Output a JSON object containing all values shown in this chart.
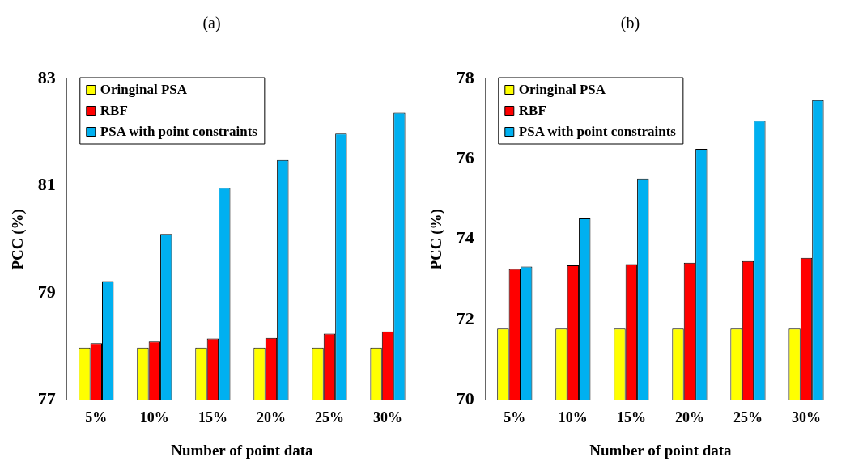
{
  "chart_data": [
    {
      "type": "bar",
      "title": "(a)",
      "xlabel": "Number of point data",
      "ylabel": "PCC (%)",
      "categories": [
        "5%",
        "10%",
        "15%",
        "20%",
        "25%",
        "30%"
      ],
      "series": [
        {
          "name": "Oringinal PSA",
          "color": "#ffff00",
          "values": [
            77.98,
            77.98,
            77.98,
            77.98,
            77.98,
            77.98
          ]
        },
        {
          "name": "RBF",
          "color": "#ff0000",
          "values": [
            78.06,
            78.09,
            78.15,
            78.16,
            78.24,
            78.28
          ]
        },
        {
          "name": "PSA with point constraints",
          "color": "#00b0f0",
          "values": [
            79.22,
            80.1,
            80.96,
            81.48,
            81.97,
            82.36
          ]
        }
      ],
      "ylim": [
        77,
        83
      ],
      "yticks": [
        77,
        79,
        81,
        83
      ],
      "legend": "top left",
      "grid": false
    },
    {
      "type": "bar",
      "title": "(b)",
      "xlabel": "Number of point data",
      "ylabel": "PCC (%)",
      "categories": [
        "5%",
        "10%",
        "15%",
        "20%",
        "25%",
        "30%"
      ],
      "series": [
        {
          "name": "Oringinal PSA",
          "color": "#ffff00",
          "values": [
            71.78,
            71.78,
            71.78,
            71.78,
            71.78,
            71.78
          ]
        },
        {
          "name": "RBF",
          "color": "#ff0000",
          "values": [
            73.26,
            73.35,
            73.38,
            73.42,
            73.46,
            73.54
          ]
        },
        {
          "name": "PSA with point constraints",
          "color": "#00b0f0",
          "values": [
            73.32,
            74.52,
            75.51,
            76.25,
            76.95,
            77.46
          ]
        }
      ],
      "ylim": [
        70,
        78
      ],
      "yticks": [
        70,
        72,
        74,
        76,
        78
      ],
      "legend": "top left",
      "grid": false
    }
  ]
}
